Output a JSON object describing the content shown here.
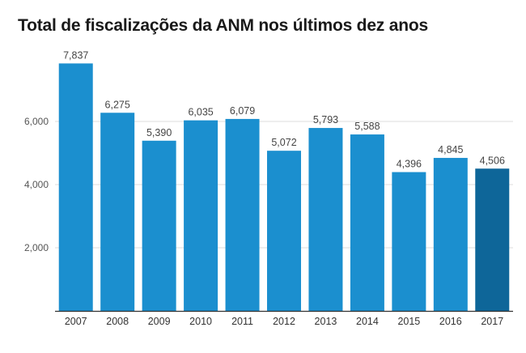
{
  "title": "Total de fiscalizações da ANM nos últimos dez anos",
  "colors": {
    "bar": "#1b8fcf",
    "bar_highlight": "#0e6699",
    "grid": "#dddddd",
    "axis": "#333333"
  },
  "chart_data": {
    "type": "bar",
    "title": "Total de fiscalizações da ANM nos últimos dez anos",
    "xlabel": "",
    "ylabel": "",
    "categories": [
      "2007",
      "2008",
      "2009",
      "2010",
      "2011",
      "2012",
      "2013",
      "2014",
      "2015",
      "2016",
      "2017"
    ],
    "values": [
      7837,
      6275,
      5390,
      6035,
      6079,
      5072,
      5793,
      5588,
      4396,
      4845,
      4506
    ],
    "value_labels": [
      "7,837",
      "6,275",
      "5,390",
      "6,035",
      "6,079",
      "5,072",
      "5,793",
      "5,588",
      "4,396",
      "4,845",
      "4,506"
    ],
    "highlight_category": "2017",
    "ylim": [
      0,
      8000
    ],
    "yticks": [
      2000,
      4000,
      6000
    ],
    "ytick_labels": [
      "2,000",
      "4,000",
      "6,000"
    ],
    "grid": true,
    "legend": "none"
  }
}
